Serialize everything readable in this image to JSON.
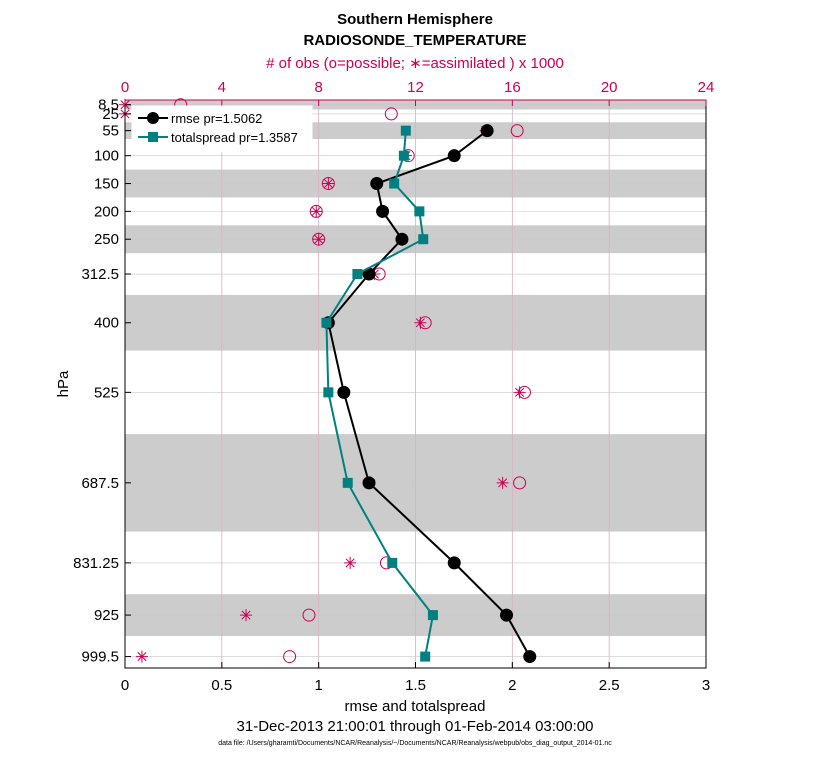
{
  "colors": {
    "rmse": "#000000",
    "totalspread": "#008080",
    "obs": "#cc0055",
    "band": "#cccccc",
    "grid": "#d8b0c0"
  },
  "chart_data": {
    "type": "line",
    "title": "Southern Hemisphere",
    "subtitle": "RADIOSONDE_TEMPERATURE",
    "top_axis_label": "# of obs (o=possible; ∗=assimilated ) x 1000",
    "xlabel": "rmse and totalspread",
    "ylabel": "hPa",
    "date_range": "31-Dec-2013 21:00:01 through 01-Feb-2014 03:00:00",
    "footer": "data file: /Users/gharamti/Documents/NCAR/Reanalysis/~/Documents/NCAR/Reanalysis/webpub/obs_diag_output_2014-01.nc",
    "xlim": [
      0,
      3
    ],
    "xticks": [
      0,
      0.5,
      1,
      1.5,
      2,
      2.5,
      3
    ],
    "xtick_labels": [
      "0",
      "0.5",
      "1",
      "1.5",
      "2",
      "2.5",
      "3"
    ],
    "top_xlim": [
      0,
      24
    ],
    "top_xticks": [
      0,
      4,
      8,
      12,
      16,
      20,
      24
    ],
    "top_xtick_labels": [
      "0",
      "4",
      "8",
      "12",
      "16",
      "20",
      "24"
    ],
    "levels": [
      "8.5",
      "25",
      "55",
      "100",
      "150",
      "200",
      "250",
      "312.5",
      "400",
      "525",
      "687.5",
      "831.25",
      "925",
      "999.5"
    ],
    "level_values": [
      8.5,
      25,
      55,
      100,
      150,
      200,
      250,
      312.5,
      400,
      525,
      687.5,
      831.25,
      925,
      999.5
    ],
    "ylim_hpa": [
      1020,
      0
    ],
    "layer_edges": [
      0,
      17,
      40,
      70,
      125,
      175,
      225,
      275,
      350,
      450,
      600,
      775,
      887.5,
      962.5,
      1020
    ],
    "series": [
      {
        "name": "rmse",
        "legend": "rmse pr=1.5062",
        "values": [
          null,
          null,
          1.87,
          1.7,
          1.3,
          1.33,
          1.43,
          1.26,
          1.05,
          1.13,
          1.26,
          1.7,
          1.97,
          2.09
        ]
      },
      {
        "name": "totalspread",
        "legend": "totalspread pr=1.3587",
        "values": [
          null,
          null,
          1.45,
          1.44,
          1.39,
          1.52,
          1.54,
          1.2,
          1.04,
          1.05,
          1.15,
          1.38,
          1.59,
          1.55
        ]
      }
    ],
    "obs_possible": [
      2.3,
      11.0,
      16.2,
      11.7,
      8.4,
      7.9,
      8.0,
      10.5,
      12.4,
      16.5,
      16.3,
      10.8,
      7.6,
      6.8
    ],
    "obs_assimilated": [
      0.0,
      0.0,
      14.9,
      11.6,
      8.4,
      7.9,
      8.0,
      10.3,
      12.2,
      16.3,
      15.6,
      9.3,
      5.0,
      0.7
    ]
  }
}
